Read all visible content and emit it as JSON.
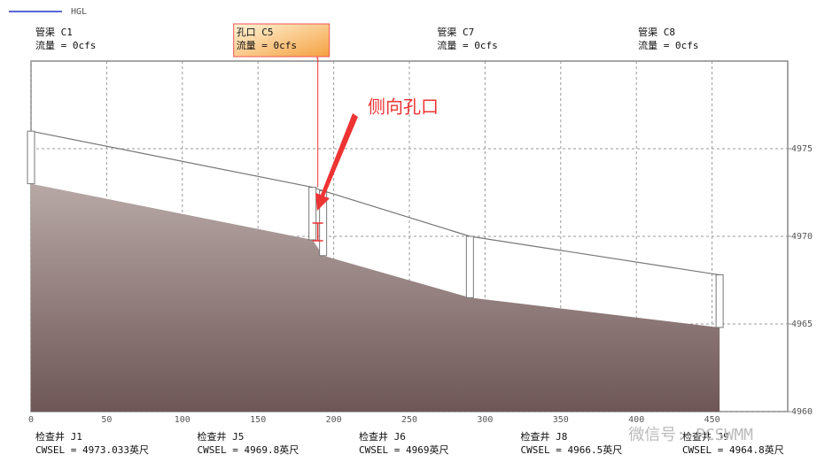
{
  "legend": {
    "name": "HGL",
    "color": "#2233cc"
  },
  "watermark": "微信号: PCSWMM",
  "chart_data": {
    "type": "profile",
    "annotation": "侧向孔口",
    "xlim": [
      0,
      500
    ],
    "xticks": [
      0,
      50,
      100,
      150,
      200,
      250,
      300,
      350,
      400,
      450
    ],
    "ylim": [
      4960,
      4980
    ],
    "yticks": [
      4960,
      4965,
      4970,
      4975
    ],
    "grid": true,
    "links": [
      {
        "label": "管渠  C1",
        "flow_label": "流量 = 0cfs"
      },
      {
        "label": "孔口  C5",
        "flow_label": "流量 = 0cfs"
      },
      {
        "label": "管渠  C7",
        "flow_label": "流量 = 0cfs"
      },
      {
        "label": "管渠  C8",
        "flow_label": "流量 = 0cfs"
      }
    ],
    "nodes": [
      {
        "label": "检查井  J1",
        "cwsel_label": "CWSEL = 4973.033英尺",
        "x": 0,
        "invert": 4973.0,
        "rim": 4976.0
      },
      {
        "label": "检查井  J5",
        "cwsel_label": "CWSEL = 4969.8英尺",
        "x": 186,
        "invert": 4969.8,
        "rim": 4972.8
      },
      {
        "label": "检查井  J6",
        "cwsel_label": "CWSEL = 4969英尺",
        "x": 193,
        "invert": 4968.9,
        "rim": 4972.6
      },
      {
        "label": "检查井  J8",
        "cwsel_label": "CWSEL = 4966.5英尺",
        "x": 290,
        "invert": 4966.5,
        "rim": 4970.0
      },
      {
        "label": "检查井  J9",
        "cwsel_label": "CWSEL = 4964.8英尺",
        "x": 455,
        "invert": 4964.8,
        "rim": 4967.8
      }
    ]
  }
}
